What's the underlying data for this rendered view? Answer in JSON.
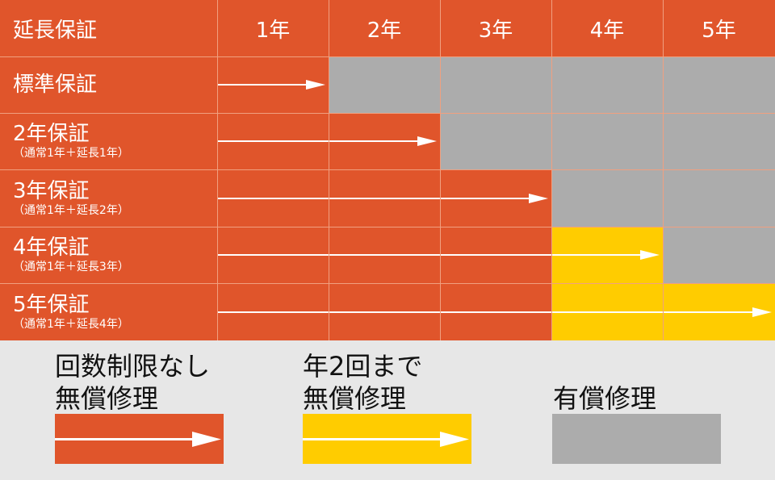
{
  "colors": {
    "orange": "#e0552b",
    "gray": "#acacac",
    "yellow": "#ffcc00",
    "line": "#f0a080",
    "background": "#e7e7e7"
  },
  "header": {
    "corner": "延長保証",
    "years": [
      "1年",
      "2年",
      "3年",
      "4年",
      "5年"
    ]
  },
  "rows": [
    {
      "label": "標準保証",
      "sub": "",
      "cells": [
        "orange",
        "gray",
        "gray",
        "gray",
        "gray"
      ],
      "coverage_years": 1
    },
    {
      "label": "2年保証",
      "sub": "（通常1年＋延長1年）",
      "cells": [
        "orange",
        "orange",
        "gray",
        "gray",
        "gray"
      ],
      "coverage_years": 2
    },
    {
      "label": "3年保証",
      "sub": "（通常1年＋延長2年）",
      "cells": [
        "orange",
        "orange",
        "orange",
        "gray",
        "gray"
      ],
      "coverage_years": 3
    },
    {
      "label": "4年保証",
      "sub": "（通常1年＋延長3年）",
      "cells": [
        "orange",
        "orange",
        "orange",
        "yellow",
        "gray"
      ],
      "coverage_years": 4
    },
    {
      "label": "5年保証",
      "sub": "（通常1年＋延長4年）",
      "cells": [
        "orange",
        "orange",
        "orange",
        "yellow",
        "yellow"
      ],
      "coverage_years": 5
    }
  ],
  "legend": [
    {
      "line1": "回数制限なし",
      "line2": "無償修理",
      "color": "orange",
      "arrow": true
    },
    {
      "line1": "年2回まで",
      "line2": "無償修理",
      "color": "yellow",
      "arrow": true
    },
    {
      "line1": "",
      "line2": "有償修理",
      "color": "gray",
      "arrow": false
    }
  ]
}
